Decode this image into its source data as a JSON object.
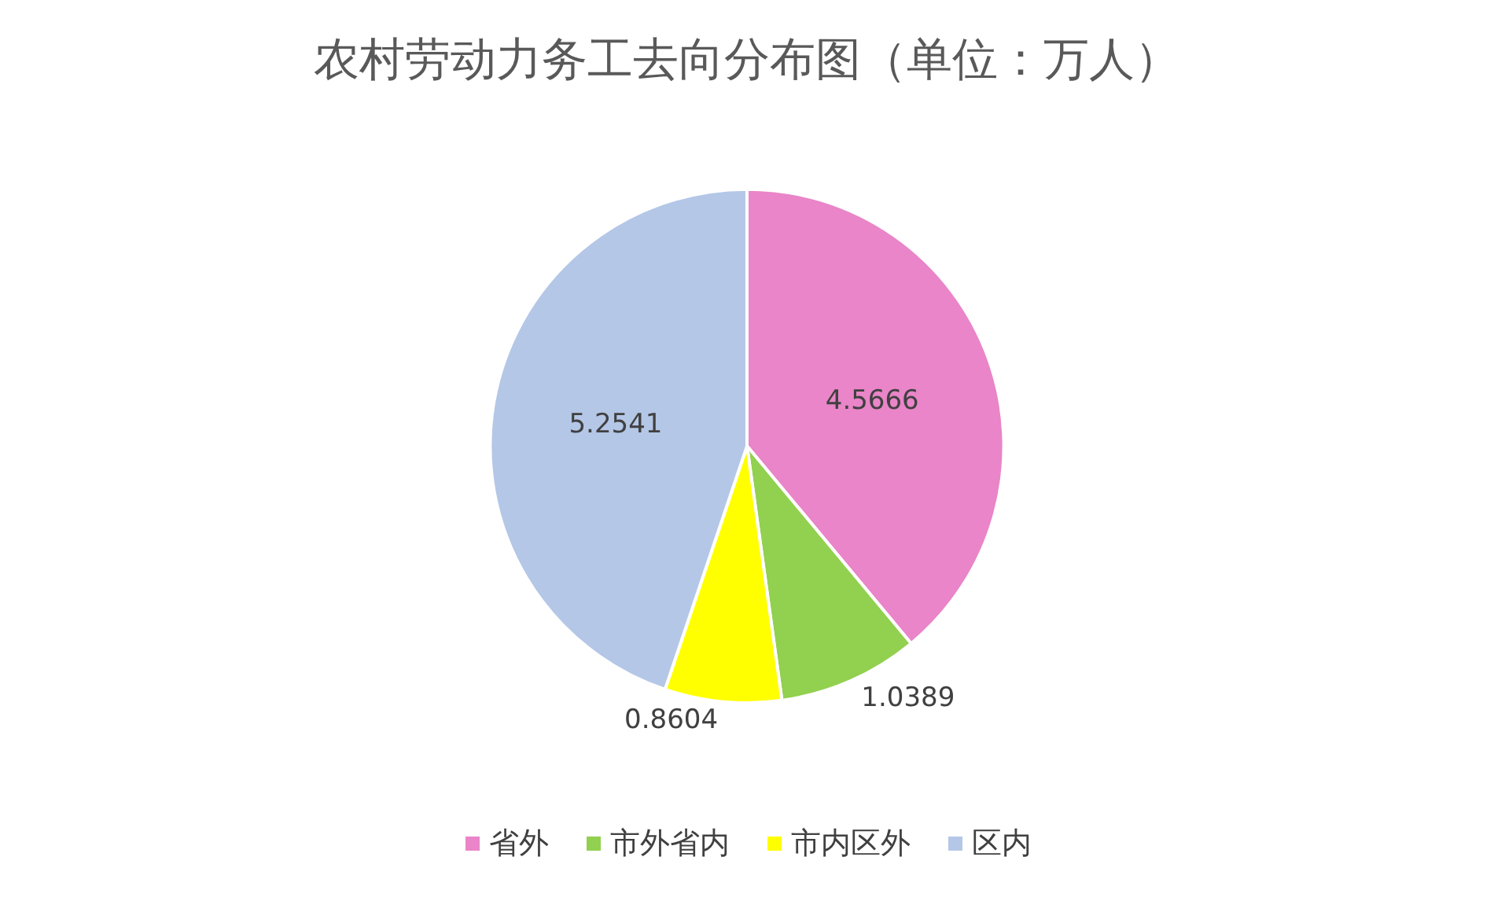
{
  "chart_data": {
    "type": "pie",
    "title": "农村劳动力务工去向分布图（单位：万人）",
    "categories": [
      "省外",
      "市外省内",
      "市内区外",
      "区内"
    ],
    "values": [
      4.5666,
      1.0389,
      0.8604,
      5.2541
    ],
    "colors": [
      "#e985c8",
      "#92d050",
      "#ffff00",
      "#b4c7e7"
    ],
    "data_labels": true,
    "legend": "bottom"
  }
}
